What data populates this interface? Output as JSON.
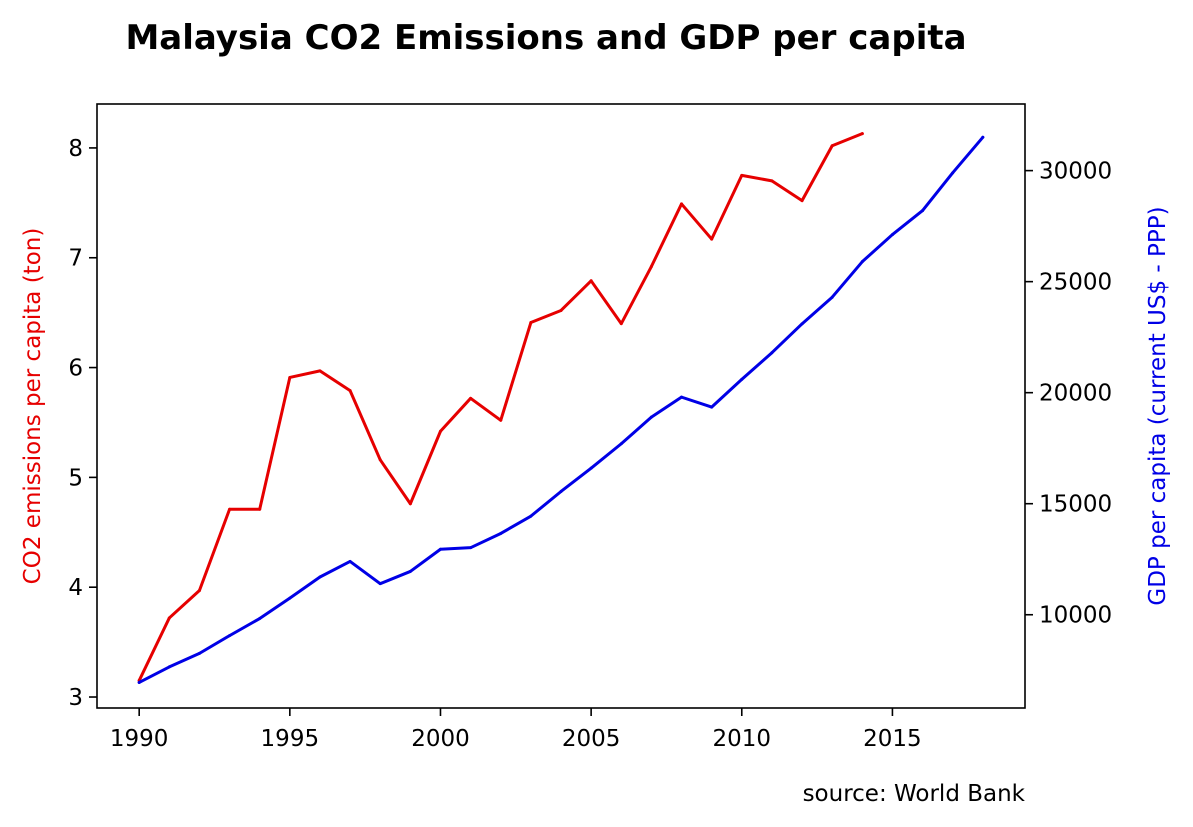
{
  "chart_data": {
    "type": "line",
    "title": "Malaysia CO2 Emissions and GDP per capita",
    "source": "source: World Bank",
    "xlabel": "",
    "x_ticks": [
      1990,
      1995,
      2000,
      2005,
      2010,
      2015
    ],
    "xlim": [
      1988.6,
      2019.4
    ],
    "grid": false,
    "left_axis": {
      "label": "CO2 emissions per capita (ton)",
      "color": "#e60000",
      "ylim": [
        2.9,
        8.4
      ],
      "ticks": [
        3,
        4,
        5,
        6,
        7,
        8
      ]
    },
    "right_axis": {
      "label": "GDP per capita (current US$ - PPP)",
      "color": "#0000e6",
      "ylim": [
        5800,
        33000
      ],
      "ticks": [
        10000,
        15000,
        20000,
        25000,
        30000
      ]
    },
    "series": [
      {
        "axis": "left",
        "color": "#e60000",
        "x": [
          1990,
          1991,
          1992,
          1993,
          1994,
          1995,
          1996,
          1997,
          1998,
          1999,
          2000,
          2001,
          2002,
          2003,
          2004,
          2005,
          2006,
          2007,
          2008,
          2009,
          2010,
          2011,
          2012,
          2013,
          2014
        ],
        "values": [
          3.15,
          3.72,
          3.97,
          4.71,
          4.71,
          5.91,
          5.97,
          5.79,
          5.16,
          4.76,
          5.42,
          5.72,
          5.52,
          6.41,
          6.52,
          6.79,
          6.4,
          6.92,
          7.49,
          7.17,
          7.75,
          7.7,
          7.52,
          8.02,
          8.13
        ]
      },
      {
        "axis": "right",
        "color": "#0000e6",
        "x": [
          1990,
          1991,
          1992,
          1993,
          1994,
          1995,
          1996,
          1997,
          1998,
          1999,
          2000,
          2001,
          2002,
          2003,
          2004,
          2005,
          2006,
          2007,
          2008,
          2009,
          2010,
          2011,
          2012,
          2013,
          2014,
          2015,
          2016,
          2017,
          2018
        ],
        "values": [
          6950,
          7650,
          8260,
          9060,
          9830,
          10750,
          11700,
          12400,
          11400,
          11950,
          12950,
          13020,
          13660,
          14440,
          15550,
          16600,
          17700,
          18900,
          19800,
          19350,
          20600,
          21800,
          23100,
          24300,
          25900,
          27120,
          28200,
          29900,
          31500
        ]
      }
    ]
  }
}
